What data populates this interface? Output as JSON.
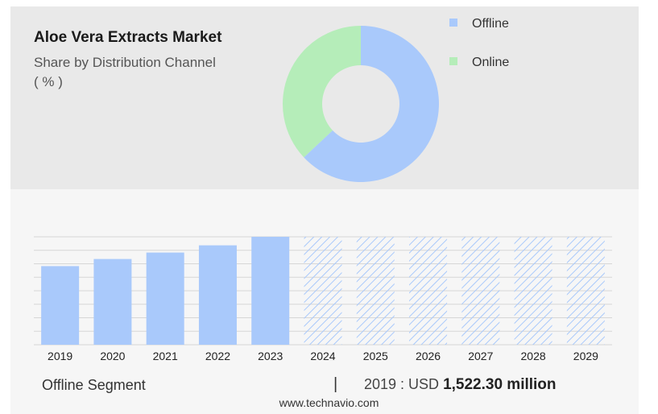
{
  "header": {
    "title": "Aloe Vera Extracts Market",
    "subtitle": "Share by Distribution Channel",
    "unit": "( % )"
  },
  "colors": {
    "offline": "#a9c9fb",
    "online": "#b5edb9",
    "grid": "#d6d6d6",
    "hatch": "#a9c9fb"
  },
  "chart_data": [
    {
      "type": "pie",
      "variant": "donut",
      "categories": [
        "Offline",
        "Online"
      ],
      "values": [
        63,
        37
      ],
      "legend": [
        "Offline",
        "Online"
      ],
      "legend_position": "right"
    },
    {
      "type": "bar",
      "categories": [
        "2019",
        "2020",
        "2021",
        "2022",
        "2023",
        "2024",
        "2025",
        "2026",
        "2027",
        "2028",
        "2029"
      ],
      "values": [
        1522.3,
        1660,
        1785,
        1925,
        2090,
        2090,
        2090,
        2090,
        2090,
        2090,
        2090
      ],
      "forecast_from": "2024",
      "grid": true
    }
  ],
  "footer": {
    "segment_label": "Offline Segment",
    "separator": "|",
    "year_prefix": "2019 : USD ",
    "value_text": "1,522.30 million",
    "source": "www.technavio.com"
  }
}
